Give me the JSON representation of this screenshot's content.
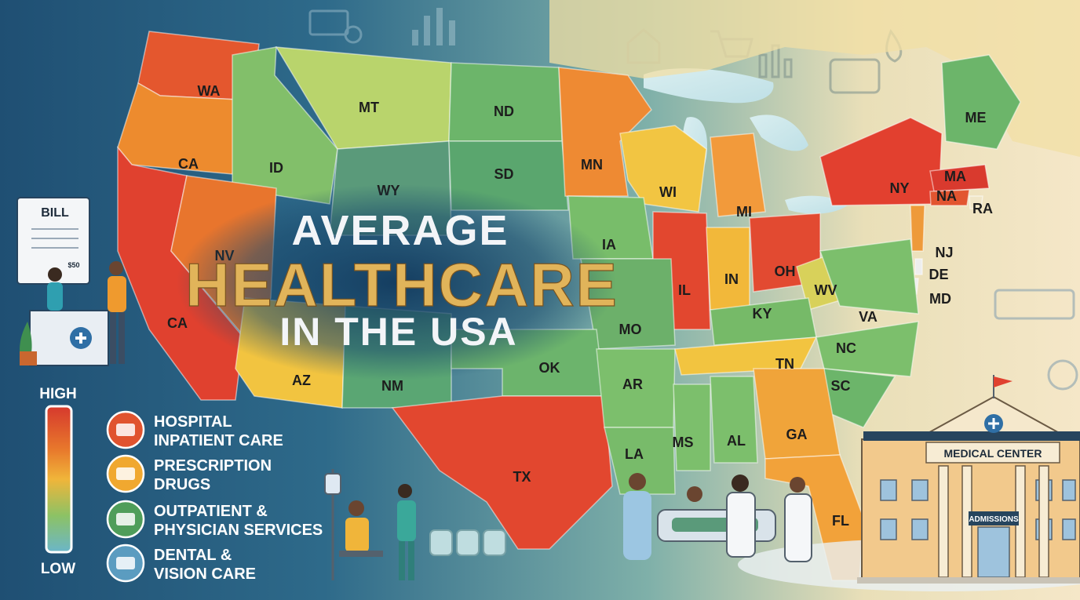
{
  "title": {
    "line1": "AVERAGE",
    "line2": "HEALTHCARE",
    "line3": "IN THE USA"
  },
  "scale": {
    "high": "HIGH",
    "low": "LOW",
    "colors": [
      "#d6392d",
      "#e8792c",
      "#f0b53a",
      "#8cc265",
      "#6bb6c9"
    ]
  },
  "legend": [
    {
      "icon": "hospital-bed-icon",
      "color": "#e0532f",
      "line1": "HOSPITAL",
      "line2": "INPATIENT CARE"
    },
    {
      "icon": "pill-bottle-icon",
      "color": "#f0a830",
      "line1": "PRESCRIPTION",
      "line2": "DRUGS"
    },
    {
      "icon": "clinic-building-icon",
      "color": "#4f9d5a",
      "line1": "OUTPATIENT &",
      "line2": "PHYSICIAN SERVICES"
    },
    {
      "icon": "eye-magnifier-icon",
      "color": "#5b9cc0",
      "line1": "DENTAL &",
      "line2": "VISION CARE"
    }
  ],
  "bill_label": "BILL",
  "bill_amount": "$50",
  "medical_center": {
    "name": "MEDICAL CENTER",
    "door": "ADMISSIONS"
  },
  "states": [
    {
      "label": "WA",
      "color": "#e4572e"
    },
    {
      "label": "CA",
      "color": "#ed8b2e"
    },
    {
      "label": "CA",
      "color": "#e0412f"
    },
    {
      "label": "ID",
      "color": "#82bf6a"
    },
    {
      "label": "MT",
      "color": "#b9d46c"
    },
    {
      "label": "WY",
      "color": "#5a9a7a"
    },
    {
      "label": "ND",
      "color": "#6cb56a"
    },
    {
      "label": "SD",
      "color": "#5aa66e"
    },
    {
      "label": "MN",
      "color": "#ee8a33"
    },
    {
      "label": "WI",
      "color": "#f2c542"
    },
    {
      "label": "MI",
      "color": "#f29a3b"
    },
    {
      "label": "IA",
      "color": "#78bd6a"
    },
    {
      "label": "IL",
      "color": "#e2472f"
    },
    {
      "label": "IN",
      "color": "#f2b83a"
    },
    {
      "label": "OH",
      "color": "#e24a31"
    },
    {
      "label": "NY",
      "color": "#e2402f"
    },
    {
      "label": "ME",
      "color": "#6cb56a"
    },
    {
      "label": "MA",
      "color": "#d93a2e"
    },
    {
      "label": "NA",
      "color": "#e25530"
    },
    {
      "label": "RA",
      "color": "#f0e6c8"
    },
    {
      "label": "NJ",
      "color": "#ee9a3a"
    },
    {
      "label": "DE",
      "color": "#eeeeee"
    },
    {
      "label": "MD",
      "color": "#eeeeee"
    },
    {
      "label": "WV",
      "color": "#d8d15a"
    },
    {
      "label": "VA",
      "color": "#7cbf6c"
    },
    {
      "label": "KY",
      "color": "#76ba68"
    },
    {
      "label": "MO",
      "color": "#6cb06a"
    },
    {
      "label": "NV",
      "color": "#e8752d"
    },
    {
      "label": "AZ",
      "color": "#f2c440"
    },
    {
      "label": "NM",
      "color": "#5aa673"
    },
    {
      "label": "OK",
      "color": "#6cb46c"
    },
    {
      "label": "TX",
      "color": "#e2472f"
    },
    {
      "label": "AR",
      "color": "#7cbf6c"
    },
    {
      "label": "LA",
      "color": "#78bb6a"
    },
    {
      "label": "MS",
      "color": "#7cbf6c"
    },
    {
      "label": "AL",
      "color": "#7cbf6c"
    },
    {
      "label": "TN",
      "color": "#f2c440"
    },
    {
      "label": "NC",
      "color": "#7cbf6c"
    },
    {
      "label": "SC",
      "color": "#6cb56a"
    },
    {
      "label": "GA",
      "color": "#f0a43a"
    },
    {
      "label": "FL",
      "color": "#f2a23a"
    }
  ]
}
